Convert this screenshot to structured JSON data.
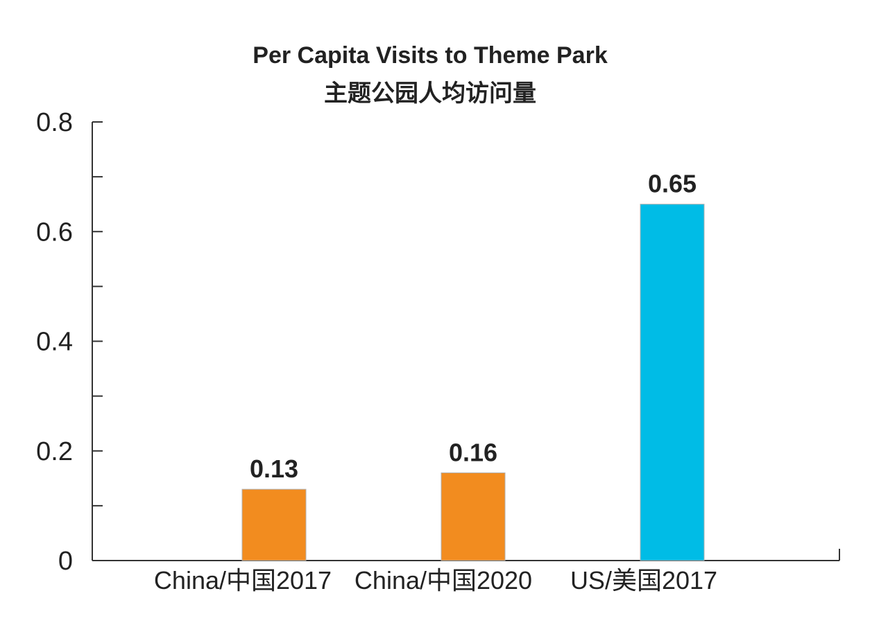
{
  "chart_data": {
    "type": "bar",
    "title": "Per Capita Visits to Theme Park",
    "subtitle": "主题公园人均访问量",
    "xlabel": "",
    "ylabel": "",
    "ylim": [
      0,
      0.8
    ],
    "yticks": [
      {
        "value": 0,
        "label": "0"
      },
      {
        "value": 0.2,
        "label": "0.2"
      },
      {
        "value": 0.4,
        "label": "0.4"
      },
      {
        "value": 0.6,
        "label": "0.6"
      },
      {
        "value": 0.8,
        "label": "0.8"
      }
    ],
    "minor_ticks": [
      0.1,
      0.3,
      0.5,
      0.7
    ],
    "grid": false,
    "legend": "none",
    "categories": [
      "China/中国2017",
      "China/中国2020",
      "US/美国2017"
    ],
    "values": [
      0.13,
      0.16,
      0.65
    ],
    "value_labels": [
      "0.13",
      "0.16",
      "0.65"
    ],
    "colors": [
      "#F28C1F",
      "#F28C1F",
      "#00BCE6"
    ]
  }
}
